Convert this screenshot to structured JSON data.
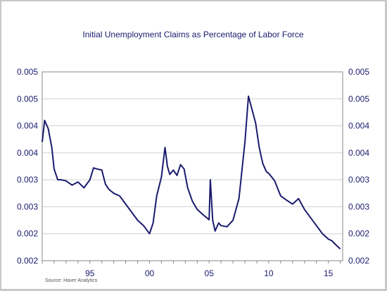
{
  "chart_data": {
    "type": "line",
    "title": "Initial Unemployment Claims as Percentage of Labor Force",
    "source": "Source:  Haver Analytics",
    "xlabel": "",
    "ylabel": "",
    "xlim": [
      1991.0,
      2016.2
    ],
    "ylim": [
      0.0015,
      0.005
    ],
    "grid": true,
    "legend": "none",
    "line_color": "#1a1a6e",
    "y_tick_values": [
      0.0015,
      0.002,
      0.0025,
      0.003,
      0.0035,
      0.004,
      0.0045,
      0.005
    ],
    "y_tick_labels": [
      "0.002",
      "0.002",
      "0.003",
      "0.003",
      "0.004",
      "0.004",
      "0.005",
      "0.005"
    ],
    "x_tick_values": [
      1995,
      2000,
      2005,
      2010,
      2015
    ],
    "x_tick_labels": [
      "95",
      "00",
      "05",
      "10",
      "15"
    ],
    "x": [
      1991.0,
      1991.2,
      1991.5,
      1991.8,
      1992.0,
      1992.3,
      1992.6,
      1993.0,
      1993.5,
      1994.0,
      1994.5,
      1995.0,
      1995.3,
      1995.6,
      1996.0,
      1996.3,
      1996.6,
      1997.0,
      1997.5,
      1998.0,
      1998.5,
      1999.0,
      1999.5,
      2000.0,
      2000.3,
      2000.6,
      2001.0,
      2001.3,
      2001.5,
      2001.7,
      2002.0,
      2002.3,
      2002.6,
      2002.9,
      2003.2,
      2003.6,
      2004.0,
      2004.5,
      2005.0,
      2005.1,
      2005.3,
      2005.5,
      2005.8,
      2006.0,
      2006.5,
      2007.0,
      2007.5,
      2008.0,
      2008.3,
      2008.6,
      2008.9,
      2009.2,
      2009.5,
      2009.8,
      2010.0,
      2010.5,
      2011.0,
      2011.5,
      2012.0,
      2012.5,
      2013.0,
      2013.5,
      2014.0,
      2014.5,
      2015.0,
      2015.3,
      2015.6,
      2016.0
    ],
    "y": [
      0.0037,
      0.0041,
      0.00395,
      0.0036,
      0.0032,
      0.003,
      0.003,
      0.00298,
      0.0029,
      0.00296,
      0.00285,
      0.003,
      0.00322,
      0.0032,
      0.00318,
      0.00292,
      0.00282,
      0.00275,
      0.0027,
      0.00255,
      0.0024,
      0.00225,
      0.00215,
      0.002,
      0.0022,
      0.0027,
      0.00305,
      0.0036,
      0.00325,
      0.0031,
      0.00318,
      0.00308,
      0.00328,
      0.0032,
      0.00285,
      0.0026,
      0.00245,
      0.00235,
      0.00226,
      0.003,
      0.00225,
      0.00205,
      0.0022,
      0.00215,
      0.00213,
      0.00225,
      0.00265,
      0.0037,
      0.00455,
      0.0043,
      0.00405,
      0.0036,
      0.0033,
      0.00315,
      0.00312,
      0.00298,
      0.0027,
      0.00262,
      0.00255,
      0.00265,
      0.00245,
      0.0023,
      0.00215,
      0.002,
      0.0019,
      0.00187,
      0.0018,
      0.00172
    ]
  }
}
